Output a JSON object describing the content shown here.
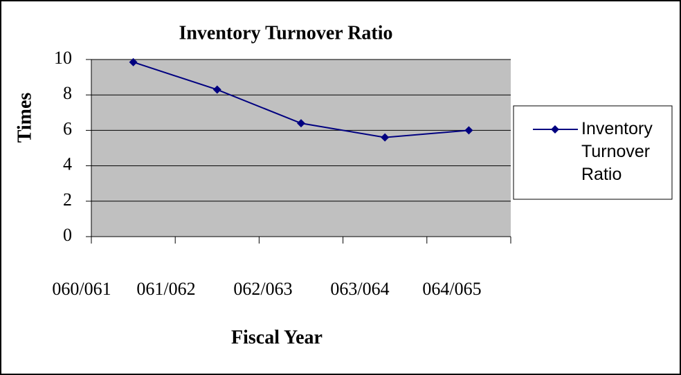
{
  "chart_data": {
    "type": "line",
    "title": "Inventory Turnover Ratio",
    "x_label": "Fiscal Year",
    "y_label": "Times",
    "categories": [
      "060/061",
      "061/062",
      "062/063",
      "063/064",
      "064/065"
    ],
    "series": [
      {
        "name": "Inventory Turnover Ratio",
        "color": "#000080",
        "values": [
          9.85,
          8.3,
          6.4,
          5.6,
          6.0
        ]
      }
    ],
    "ylim": [
      0,
      10
    ],
    "yticks": [
      0,
      2,
      4,
      6,
      8,
      10
    ],
    "grid": true,
    "legend": "right"
  }
}
